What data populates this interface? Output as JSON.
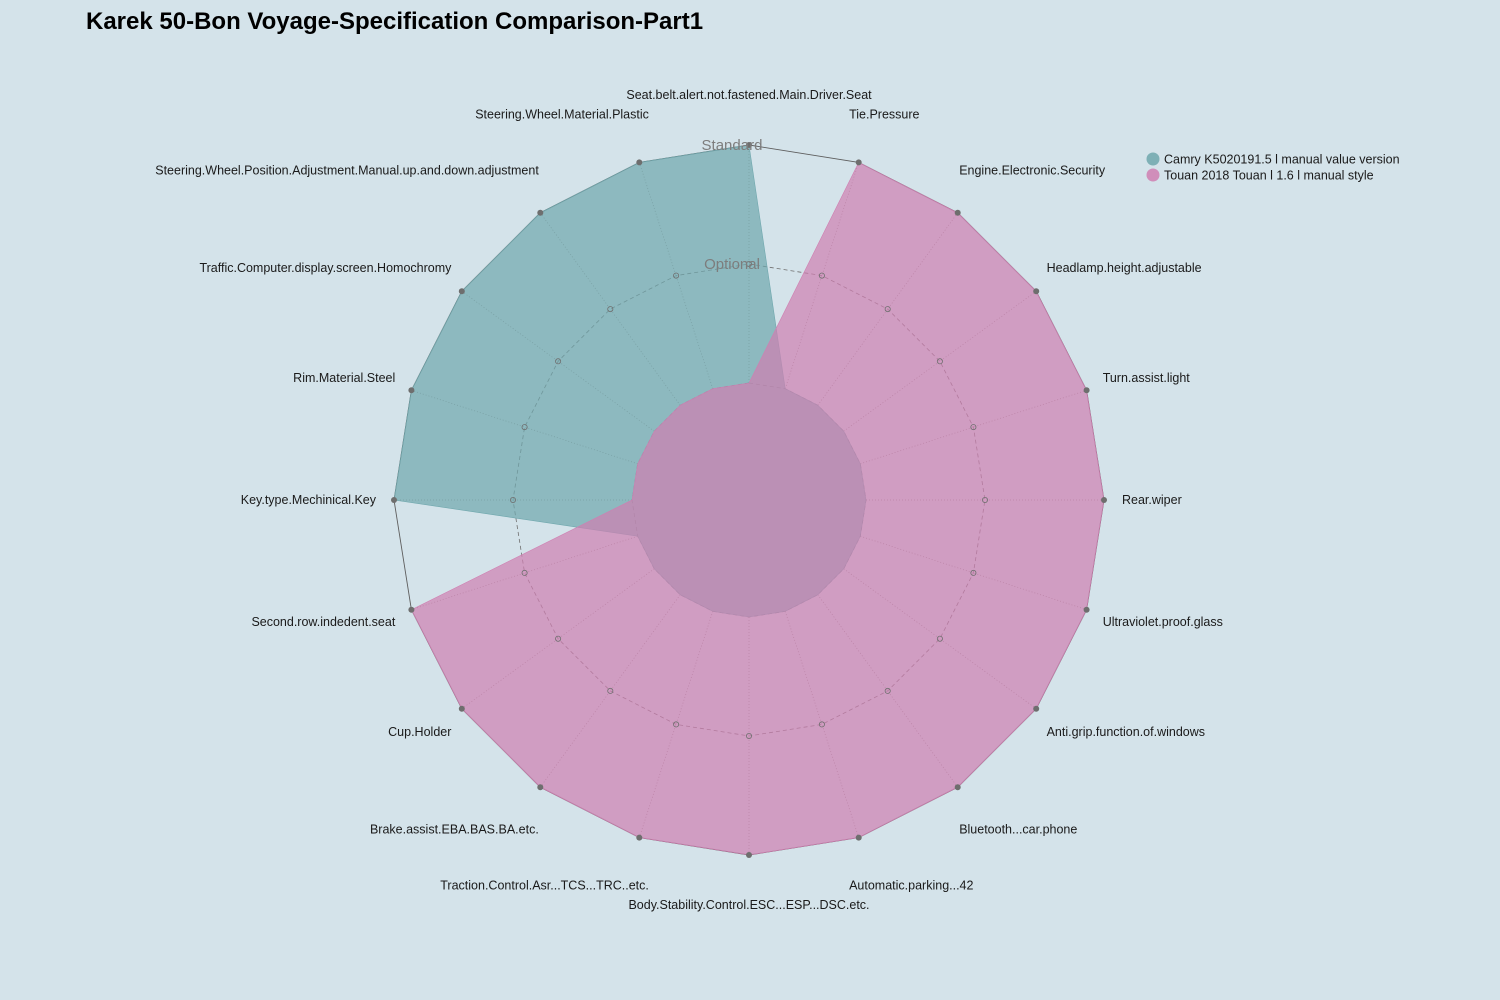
{
  "chart_data": {
    "type": "radar",
    "title": "Karek 50-Bon Voyage-Specification Comparison-Part1",
    "levels": [
      "",
      "Optional",
      "Standard"
    ],
    "axes": [
      "Seat.belt.alert.not.fastened.Main.Driver.Seat",
      "Tie.Pressure",
      "Engine.Electronic.Security",
      "Headlamp.height.adjustable",
      "Turn.assist.light",
      "Rear.wiper",
      "Ultraviolet.proof.glass",
      "Anti.grip.function.of.windows",
      "Bluetooth...car.phone",
      "Automatic.parking...42",
      "Body.Stability.Control.ESC...ESP...DSC.etc.",
      "Traction.Control.Asr...TCS...TRC..etc.",
      "Brake.assist.EBA.BAS.BA.etc.",
      "Cup.Holder",
      "Second.row.indedent.seat",
      "Key.type.Mechinical.Key",
      "Rim.Material.Steel",
      "Traffic.Computer.display.screen.Homochromy",
      "Steering.Wheel.Position.Adjustment.Manual.up.and.down.adjustment",
      "Steering.Wheel.Material.Plastic"
    ],
    "series": [
      {
        "name": "Camry K5020191.5 l manual value version",
        "color": "#6fa7ad",
        "values": [
          2,
          0,
          0,
          0,
          0,
          0,
          0,
          0,
          0,
          0,
          0,
          0,
          0,
          0,
          0,
          2,
          2,
          2,
          2,
          2
        ]
      },
      {
        "name": "Touan 2018 Touan l 1.6 l manual style",
        "color": "#cf7fb1",
        "values": [
          0,
          2,
          2,
          2,
          2,
          2,
          2,
          2,
          2,
          2,
          2,
          2,
          2,
          2,
          2,
          0,
          0,
          0,
          0,
          0
        ]
      }
    ],
    "legend_position": "top-right"
  }
}
